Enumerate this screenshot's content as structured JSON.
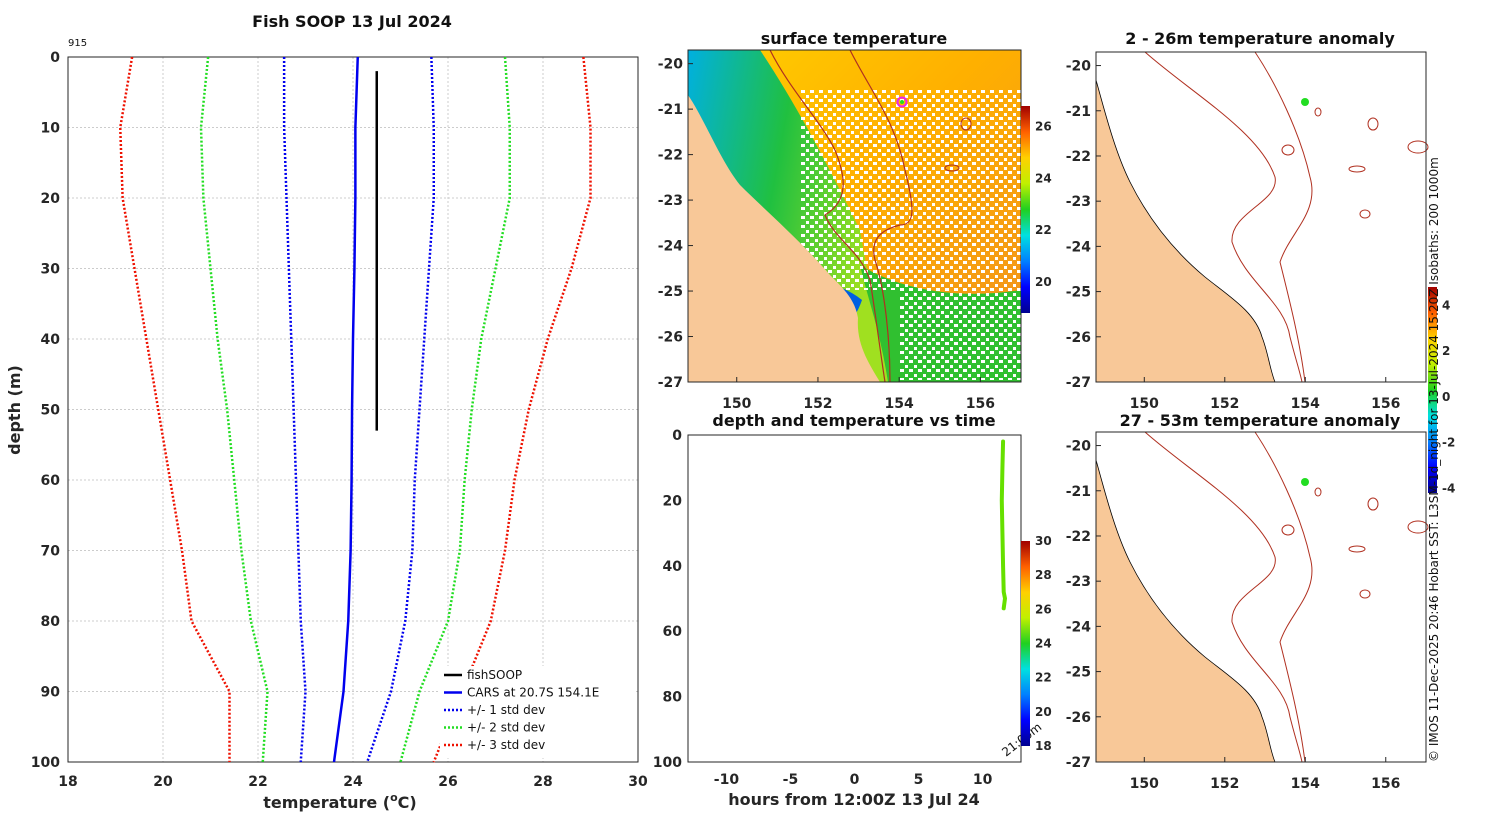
{
  "chart_data": [
    {
      "type": "line",
      "id": "profile",
      "title": "Fish SOOP 13 Jul 2024",
      "id_label": "915",
      "xlabel": "temperature (",
      "xlabel_sup": "o",
      "xlabel_tail": "C)",
      "ylabel": "depth (m)",
      "xlim": [
        18,
        30
      ],
      "ylim": [
        0,
        100
      ],
      "x_ticks": [
        "18",
        "20",
        "22",
        "24",
        "26",
        "28",
        "30"
      ],
      "y_ticks": [
        "0",
        "10",
        "20",
        "30",
        "40",
        "50",
        "60",
        "70",
        "80",
        "90",
        "100"
      ],
      "depth": [
        0,
        10,
        20,
        30,
        40,
        50,
        60,
        70,
        80,
        90,
        100
      ],
      "series": [
        {
          "name": "fishSOOP",
          "color": "#000000",
          "style": "solid",
          "depth": [
            2,
            53
          ],
          "values": [
            24.5,
            24.5
          ]
        },
        {
          "name": "CARS at 20.7S 154.1E",
          "color": "#0000ee",
          "style": "solid",
          "values": [
            24.1,
            24.05,
            24.05,
            24.03,
            24.0,
            23.98,
            23.97,
            23.95,
            23.9,
            23.8,
            23.6
          ]
        },
        {
          "name": "+/- 1 std dev",
          "color": "#0000ee",
          "style": "dotted",
          "values_low": [
            22.55,
            22.55,
            22.6,
            22.65,
            22.7,
            22.75,
            22.8,
            22.85,
            22.9,
            23.0,
            22.9
          ],
          "values_high": [
            25.65,
            25.7,
            25.7,
            25.6,
            25.5,
            25.4,
            25.3,
            25.25,
            25.1,
            24.8,
            24.3
          ]
        },
        {
          "name": "+/- 2 std dev",
          "color": "#22dd22",
          "style": "dotted",
          "values_low": [
            20.95,
            20.8,
            20.85,
            21.0,
            21.15,
            21.35,
            21.5,
            21.65,
            21.85,
            22.2,
            22.1
          ],
          "values_high": [
            27.2,
            27.3,
            27.3,
            27.0,
            26.7,
            26.5,
            26.35,
            26.25,
            26.0,
            25.4,
            25.0
          ]
        },
        {
          "name": "+/- 3 std dev",
          "color": "#ee1100",
          "style": "dotted",
          "values_low": [
            19.35,
            19.1,
            19.15,
            19.4,
            19.65,
            19.9,
            20.15,
            20.4,
            20.6,
            21.4,
            21.4
          ],
          "values_high": [
            28.85,
            29.0,
            29.0,
            28.6,
            28.1,
            27.7,
            27.4,
            27.2,
            26.9,
            26.3,
            25.7
          ]
        }
      ],
      "legend_location": "bottom-right",
      "grid": true
    },
    {
      "type": "heatmap",
      "id": "sst",
      "title": "surface temperature",
      "x_ticks": [
        "150",
        "152",
        "154",
        "156"
      ],
      "y_ticks": [
        "-20",
        "-21",
        "-22",
        "-23",
        "-24",
        "-25",
        "-26",
        "-27"
      ],
      "xlim": [
        148.8,
        157
      ],
      "ylim": [
        -27,
        -19.7
      ],
      "colorbar_ticks": [
        "20",
        "22",
        "24",
        "26"
      ],
      "colorbar_range": [
        18.8,
        26.8
      ],
      "vessel_position": {
        "lon": 154.1,
        "lat": -20.7
      }
    },
    {
      "type": "scatter",
      "id": "depth_time",
      "title": "depth and temperature vs time",
      "xlabel": "hours from 12:00Z 13 Jul 24",
      "xlim": [
        -13,
        13
      ],
      "ylim": [
        0,
        100
      ],
      "x_ticks": [
        "-10",
        "-5",
        "0",
        "5",
        "10"
      ],
      "y_ticks": [
        "0",
        "20",
        "40",
        "60",
        "80",
        "100"
      ],
      "colorbar_ticks": [
        "18",
        "20",
        "22",
        "24",
        "26",
        "28",
        "30"
      ],
      "colorbar_range": [
        18,
        30
      ],
      "time_annotation": "21:00m",
      "track_hours": [
        11.6,
        11.55,
        11.5,
        11.55,
        11.6,
        11.65,
        11.75,
        11.65
      ],
      "track_depth": [
        2,
        10,
        20,
        30,
        40,
        48,
        50,
        53
      ],
      "track_temp": [
        24.5,
        24.5,
        24.5,
        24.5,
        24.5,
        24.5,
        24.5,
        24.5
      ]
    },
    {
      "type": "heatmap",
      "id": "anomaly_top",
      "title": "2 - 26m temperature anomaly",
      "x_ticks": [
        "150",
        "152",
        "154",
        "156"
      ],
      "y_ticks": [
        "-20",
        "-21",
        "-22",
        "-23",
        "-24",
        "-25",
        "-26",
        "-27"
      ],
      "xlim": [
        148.8,
        157
      ],
      "ylim": [
        -27,
        -19.7
      ],
      "vessel_position": {
        "lon": 154.1,
        "lat": -20.7
      }
    },
    {
      "type": "heatmap",
      "id": "anomaly_bottom",
      "title": "27 - 53m temperature anomaly",
      "x_ticks": [
        "150",
        "152",
        "154",
        "156"
      ],
      "y_ticks": [
        "-20",
        "-21",
        "-22",
        "-23",
        "-24",
        "-25",
        "-26",
        "-27"
      ],
      "xlim": [
        148.8,
        157
      ],
      "ylim": [
        -27,
        -19.7
      ],
      "colorbar_ticks": [
        "-4",
        "-2",
        "0",
        "2",
        "4"
      ],
      "colorbar_range": [
        -4.2,
        4.8
      ],
      "vessel_position": {
        "lon": 154.1,
        "lat": -20.7
      }
    }
  ],
  "credit": "© IMOS 11-Dec-2025 20:46 Hobart SST: L3SM-1d_night for 13-Jul-2024 15:20Z Isobaths: 200  1000m",
  "colors": {
    "land": "#f8c898",
    "isobath": "#b03020",
    "vessel_marker": "#22dd22",
    "vessel_ring": "#ee22ee"
  }
}
